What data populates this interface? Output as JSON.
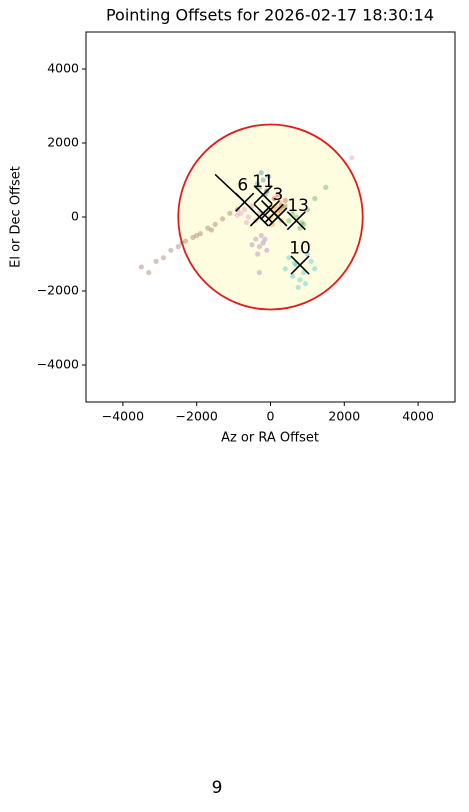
{
  "chart_data": {
    "type": "scatter",
    "title": "Pointing Offsets for 2026-02-17 18:30:14",
    "xlabel": "Az or RA Offset",
    "ylabel": "El or Dec Offset",
    "xlim": [
      -5000,
      5000
    ],
    "ylim": [
      -5000,
      5000
    ],
    "xticks": [
      {
        "value": -4000,
        "label": "−4000"
      },
      {
        "value": -2000,
        "label": "−2000"
      },
      0,
      2000,
      4000
    ],
    "yticks": [
      {
        "value": -4000,
        "label": "−4000"
      },
      {
        "value": -2000,
        "label": "−2000"
      },
      0,
      2000,
      4000
    ],
    "circle": {
      "center": [
        0,
        0
      ],
      "radius": 2500,
      "fill": "#fffde0",
      "edge": "#e31a1c"
    },
    "series": [
      {
        "color": "#8c564b",
        "x": [
          -3300,
          -3100,
          -2900,
          -2700,
          -2500,
          -2300,
          -2100,
          -1900,
          -1700,
          -1500,
          -1300,
          -1100,
          -900,
          -3500,
          -2400,
          -2000,
          -1600
        ],
        "y": [
          -1500,
          -1200,
          -1100,
          -900,
          -800,
          -650,
          -550,
          -450,
          -300,
          -200,
          -50,
          100,
          200,
          -1350,
          -700,
          -500,
          -350
        ]
      },
      {
        "color": "#e377c2",
        "x": [
          -800,
          -600,
          -700,
          -400,
          -500,
          -900,
          -300,
          -650,
          2200
        ],
        "y": [
          100,
          0,
          200,
          -100,
          300,
          50,
          100,
          -150,
          1600
        ]
      },
      {
        "color": "#9467bd",
        "x": [
          -400,
          -300,
          -200,
          -100,
          -350,
          -250,
          -500,
          -150,
          -300
        ],
        "y": [
          -600,
          -800,
          -700,
          -900,
          -1000,
          -500,
          -750,
          -600,
          -1500
        ]
      },
      {
        "color": "#17becf",
        "x": [
          500,
          700,
          900,
          1100,
          600,
          800,
          1000,
          400,
          750,
          1200,
          650,
          950
        ],
        "y": [
          -1100,
          -1300,
          -1500,
          -1200,
          -1600,
          -1700,
          -1000,
          -1400,
          -1900,
          -1400,
          -1250,
          -1800
        ]
      },
      {
        "color": "#2ca02c",
        "x": [
          500,
          700,
          900,
          600,
          800,
          1000,
          1200,
          1500,
          400,
          850
        ],
        "y": [
          -100,
          0,
          -200,
          100,
          -300,
          200,
          500,
          800,
          300,
          -150
        ]
      },
      {
        "color": "#ff7f0e",
        "x": [
          0,
          100,
          200,
          300,
          150,
          250,
          50,
          350
        ],
        "y": [
          0,
          200,
          100,
          -100,
          300,
          400,
          -200,
          250
        ]
      },
      {
        "color": "#d62728",
        "x": [
          100,
          200,
          300,
          -100,
          400,
          250
        ],
        "y": [
          500,
          600,
          300,
          700,
          450,
          200
        ]
      },
      {
        "color": "#1f77b4",
        "x": [
          -300,
          -200,
          -100,
          -250,
          -150,
          -350,
          -50
        ],
        "y": [
          800,
          1000,
          700,
          1200,
          600,
          900,
          1100
        ]
      }
    ],
    "markers": {
      "x": [
        -700,
        -300,
        -200,
        0,
        100,
        200,
        700,
        800,
        -200
      ],
      "y": [
        400,
        0,
        100,
        200,
        100,
        0,
        -100,
        -1300,
        600
      ]
    },
    "lines": [
      {
        "x": [
          -1500,
          -700
        ],
        "y": [
          1150,
          400
        ]
      }
    ],
    "annotations": [
      {
        "text": "6",
        "x": -750,
        "y": 850
      },
      {
        "text": "11",
        "x": -200,
        "y": 950
      },
      {
        "text": "3",
        "x": 200,
        "y": 600
      },
      {
        "text": "13",
        "x": 750,
        "y": 300
      },
      {
        "text": "10",
        "x": 800,
        "y": -850
      }
    ]
  },
  "page_label": "9"
}
